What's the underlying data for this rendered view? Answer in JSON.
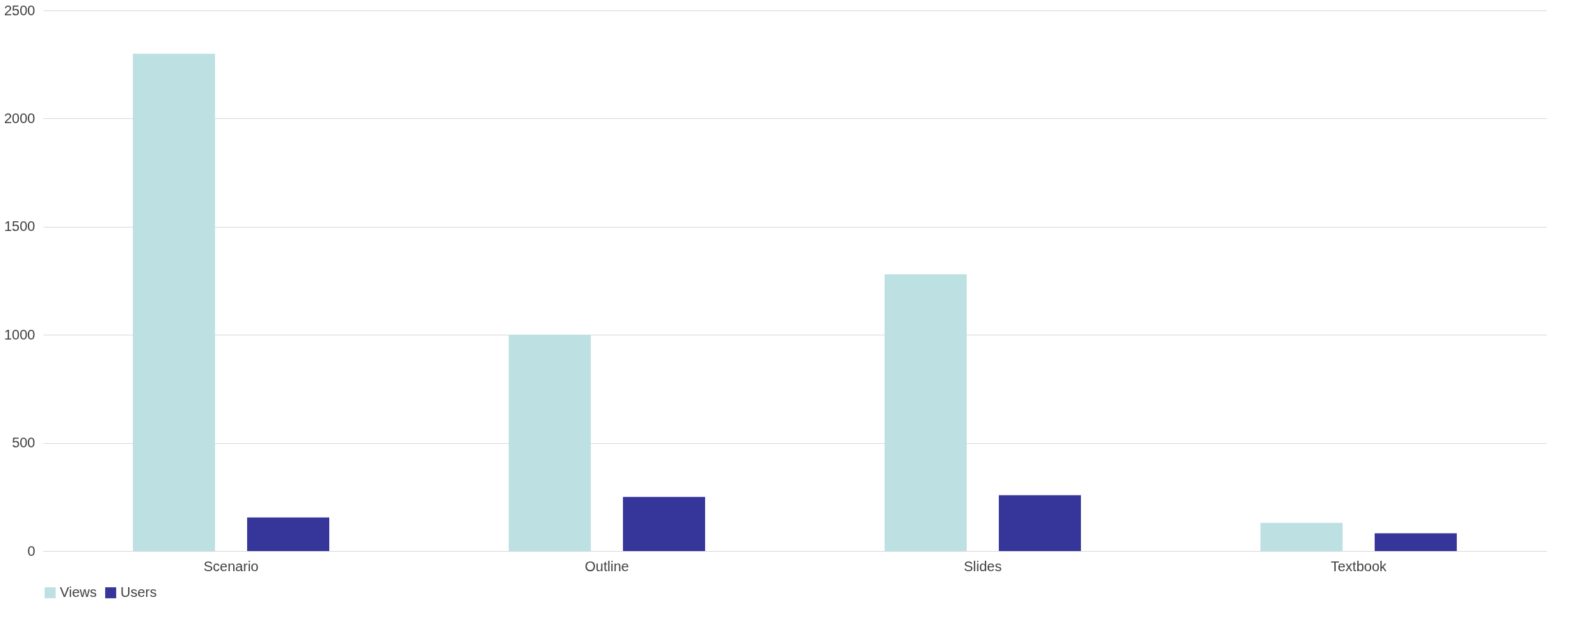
{
  "chart_data": {
    "type": "bar",
    "categories": [
      "Scenario",
      "Outline",
      "Slides",
      "Textbook"
    ],
    "series": [
      {
        "name": "Views",
        "color": "#bde0e3",
        "values": [
          2300,
          1000,
          1280,
          130
        ]
      },
      {
        "name": "Users",
        "color": "#35359a",
        "values": [
          155,
          250,
          258,
          82
        ]
      }
    ],
    "ylim": [
      0,
      2500
    ],
    "yticks": [
      0,
      500,
      1000,
      1500,
      2000,
      2500
    ],
    "grid": "y",
    "legend": "bottom"
  }
}
